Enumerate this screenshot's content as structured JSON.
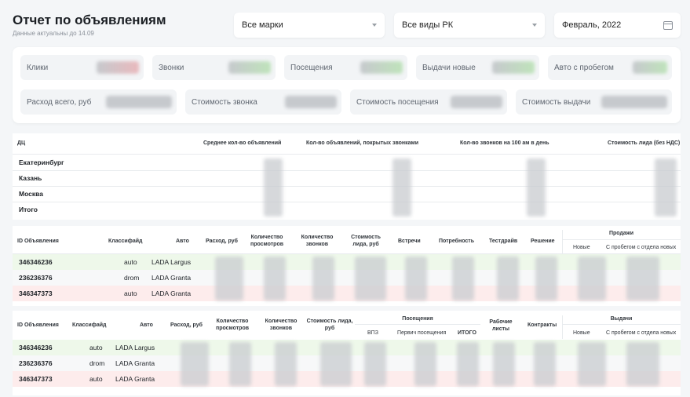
{
  "header": {
    "title": "Отчет по объявлениям",
    "subtitle": "Данные актуальны до 14.09"
  },
  "filters": {
    "brand": "Все марки",
    "campaign_type": "Все виды РК",
    "period": "Февраль, 2022"
  },
  "kpis": {
    "row1": [
      "Клики",
      "Звонки",
      "Посещения",
      "Выдачи новые",
      "Авто с пробегом"
    ],
    "row2": [
      "Расход всего, руб",
      "Стоимость звонка",
      "Стоимость посещения",
      "Стоимость выдачи"
    ]
  },
  "dc_table": {
    "headers": [
      "ДЦ",
      "Среднее кол-во объявлений",
      "Кол-во объявлений, покрытых звонками",
      "Кол-во звонков на 100 ам в день",
      "Стоимость лида (без НДС)"
    ],
    "rows": [
      "Екатеринбург",
      "Казань",
      "Москва",
      "Итого"
    ]
  },
  "ads_table": {
    "headers": [
      "ID Объявления",
      "Классифайд",
      "Авто",
      "Расход, руб",
      "Количество просмотров",
      "Количество звонков",
      "Стоимость лида, руб",
      "Встречи",
      "Потребность",
      "Тестдрайв",
      "Решение"
    ],
    "group_header": "Продажи",
    "sub_headers": [
      "Новые",
      "С пробегом с отдела новых"
    ],
    "rows": [
      {
        "id": "346346236",
        "classified": "auto",
        "car": "LADA Largus"
      },
      {
        "id": "236236376",
        "classified": "drom",
        "car": "LADA Granta"
      },
      {
        "id": "346347373",
        "classified": "auto",
        "car": "LADA Granta"
      }
    ]
  },
  "visits_table": {
    "headers": [
      "ID Объявления",
      "Классифайд",
      "Авто",
      "Расход, руб",
      "Количество просмотров",
      "Количество звонков",
      "Стоимость лида, руб"
    ],
    "visits_group": "Посещения",
    "visits_sub": [
      "ВПЗ",
      "Первич посещения",
      "ИТОГО"
    ],
    "after_headers": [
      "Рабочие листы",
      "Контракты"
    ],
    "issues_group": "Выдачи",
    "issues_sub": [
      "Новые",
      "С пробегом с отдела новых"
    ],
    "rows": [
      {
        "id": "346346236",
        "classified": "auto",
        "car": "LADA Largus"
      },
      {
        "id": "236236376",
        "classified": "drom",
        "car": "LADA Granta"
      },
      {
        "id": "346347373",
        "classified": "auto",
        "car": "LADA Granta"
      }
    ]
  },
  "colors": {
    "row_green": "#eef8ea",
    "row_red": "#fdecec",
    "row_neutral": "#f7f8f9"
  }
}
